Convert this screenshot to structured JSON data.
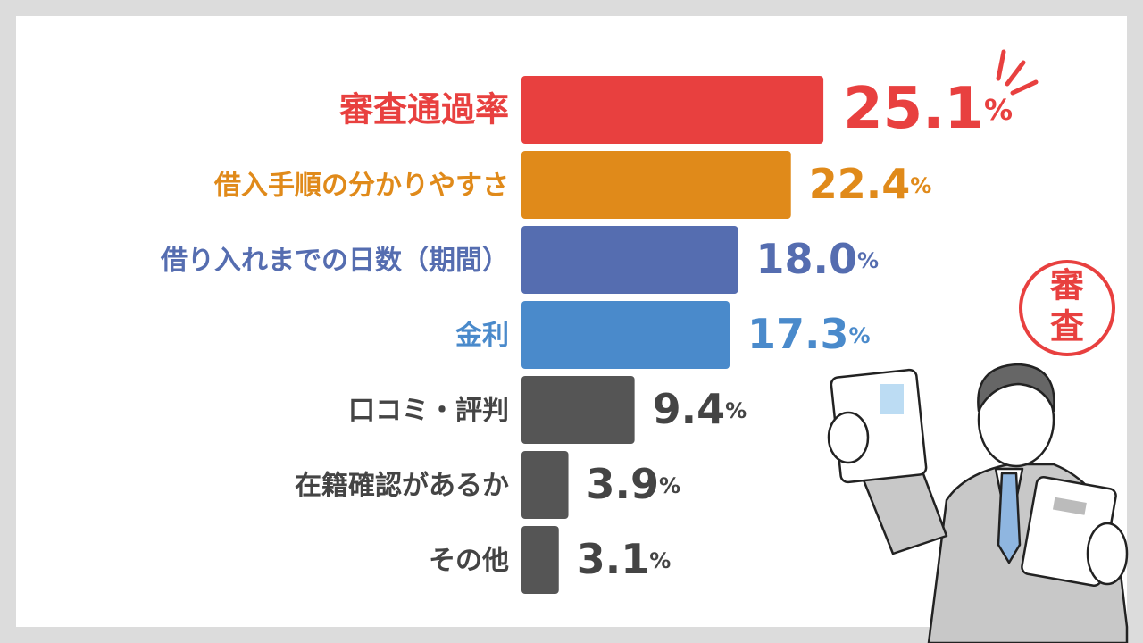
{
  "chart_data": {
    "type": "bar",
    "orientation": "horizontal",
    "categories": [
      "審査通過率",
      "借入手順の分かりやすさ",
      "借り入れまでの日数（期間）",
      "金利",
      "口コミ・評判",
      "在籍確認があるか",
      "その他"
    ],
    "values": [
      25.1,
      22.4,
      18.0,
      17.3,
      9.4,
      3.9,
      3.1
    ],
    "value_labels": [
      "25.1%",
      "22.4%",
      "18.0%",
      "17.3%",
      "9.4%",
      "3.9%",
      "3.1%"
    ],
    "colors": [
      "#e8403f",
      "#e08a1a",
      "#556db0",
      "#4a8acb",
      "#555555",
      "#555555",
      "#555555"
    ]
  },
  "illustration": {
    "stamp": [
      "審",
      "査"
    ]
  }
}
